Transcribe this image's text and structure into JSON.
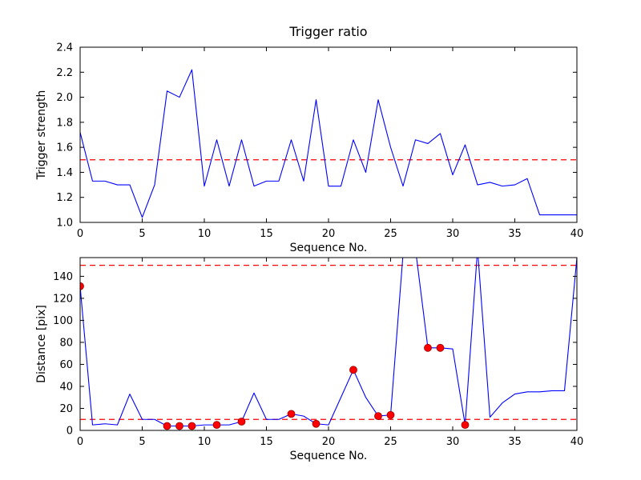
{
  "figure": {
    "background": "#ffffff",
    "axes_color": "#000000",
    "default_line_color": "#0000ff",
    "threshold_color": "#ff0000"
  },
  "chart_data": [
    {
      "type": "line",
      "title": "Trigger ratio",
      "xlabel": "Sequence No.",
      "ylabel": "Trigger strength",
      "xlim": [
        0,
        40
      ],
      "ylim": [
        1.0,
        2.4
      ],
      "grid": false,
      "legend": null,
      "xtick_values": [
        0,
        5,
        10,
        15,
        20,
        25,
        30,
        35,
        40
      ],
      "xtick_labels": [
        "0",
        "5",
        "10",
        "15",
        "20",
        "25",
        "30",
        "35",
        "40"
      ],
      "ytick_values": [
        1.0,
        1.2,
        1.4,
        1.6,
        1.8,
        2.0,
        2.2,
        2.4
      ],
      "ytick_labels": [
        "1.0",
        "1.2",
        "1.4",
        "1.6",
        "1.8",
        "2.0",
        "2.2",
        "2.4"
      ],
      "thresholds": [
        {
          "value": 1.5,
          "color": "#ff0000",
          "style": "dashed"
        }
      ],
      "series": [
        {
          "name": "trigger-strength",
          "color": "#0000ff",
          "style": "solid",
          "x": [
            0,
            1,
            2,
            3,
            4,
            5,
            6,
            7,
            8,
            9,
            10,
            11,
            12,
            13,
            14,
            15,
            16,
            17,
            18,
            19,
            20,
            21,
            22,
            23,
            24,
            25,
            26,
            27,
            28,
            29,
            30,
            31,
            32,
            33,
            34,
            35,
            36,
            37,
            38,
            39,
            40
          ],
          "y": [
            1.72,
            1.33,
            1.33,
            1.3,
            1.3,
            1.04,
            1.3,
            2.05,
            2.0,
            2.22,
            1.29,
            1.66,
            1.29,
            1.66,
            1.29,
            1.33,
            1.33,
            1.66,
            1.33,
            1.98,
            1.29,
            1.29,
            1.66,
            1.4,
            1.98,
            1.6,
            1.29,
            1.66,
            1.63,
            1.71,
            1.38,
            1.62,
            1.3,
            1.32,
            1.29,
            1.3,
            1.35,
            1.06,
            1.06,
            1.06,
            1.06
          ]
        }
      ]
    },
    {
      "type": "line",
      "title": "",
      "xlabel": "Sequence No.",
      "ylabel": "Distance [pix]",
      "xlim": [
        0,
        40
      ],
      "ylim": [
        0,
        157
      ],
      "grid": false,
      "legend": null,
      "xtick_values": [
        0,
        5,
        10,
        15,
        20,
        25,
        30,
        35,
        40
      ],
      "xtick_labels": [
        "0",
        "5",
        "10",
        "15",
        "20",
        "25",
        "30",
        "35",
        "40"
      ],
      "ytick_values": [
        0,
        20,
        40,
        60,
        80,
        100,
        120,
        140
      ],
      "ytick_labels": [
        "0",
        "20",
        "40",
        "60",
        "80",
        "100",
        "120",
        "140"
      ],
      "thresholds": [
        {
          "value": 150,
          "color": "#ff0000",
          "style": "dashed"
        },
        {
          "value": 10,
          "color": "#ff0000",
          "style": "dashed"
        }
      ],
      "series": [
        {
          "name": "distance",
          "color": "#0000ff",
          "style": "solid",
          "x": [
            0,
            1,
            2,
            3,
            4,
            5,
            6,
            7,
            8,
            9,
            10,
            11,
            12,
            13,
            14,
            15,
            16,
            17,
            18,
            19,
            20,
            21,
            22,
            23,
            24,
            25,
            26,
            27,
            28,
            29,
            30,
            31,
            32,
            33,
            34,
            35,
            36,
            37,
            38,
            39,
            40
          ],
          "y": [
            131,
            5,
            6,
            5,
            33,
            10,
            10,
            4,
            4,
            4,
            5,
            5,
            5,
            8,
            34,
            10,
            10,
            15,
            13,
            6,
            5,
            30,
            55,
            30,
            13,
            14,
            160,
            165,
            75,
            75,
            74,
            5,
            165,
            12,
            25,
            33,
            35,
            35,
            36,
            36,
            157
          ]
        }
      ],
      "markers": {
        "color": "#ff0000",
        "edge": "#990000",
        "points": [
          [
            0,
            131
          ],
          [
            7,
            4
          ],
          [
            8,
            4
          ],
          [
            9,
            4
          ],
          [
            11,
            5
          ],
          [
            13,
            8
          ],
          [
            17,
            15
          ],
          [
            19,
            6
          ],
          [
            22,
            55
          ],
          [
            24,
            13
          ],
          [
            25,
            14
          ],
          [
            28,
            75
          ],
          [
            29,
            75
          ],
          [
            31,
            5
          ]
        ]
      }
    }
  ]
}
